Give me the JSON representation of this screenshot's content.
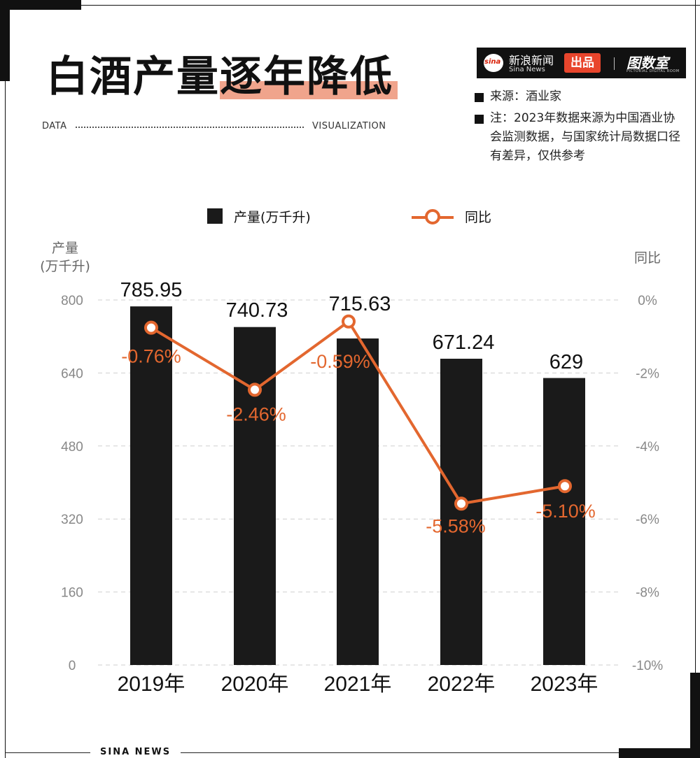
{
  "header": {
    "title_part1": "白酒产量",
    "title_part2": "逐年降低",
    "data_label": "DATA",
    "visualization_label": "VISUALIZATION"
  },
  "brand": {
    "logo_text": "sina",
    "name": "新浪新闻",
    "sub": "Sina News",
    "badge": "出品",
    "lab": "图数室",
    "lab_sub": "PICTORIAL DIGITAL ROOM"
  },
  "notes": {
    "source": "来源：酒业家",
    "note": "注：2023年数据来源为中国酒业协会监测数据，与国家统计局数据口径有差异，仅供参考"
  },
  "legend": {
    "bar_label": "产量(万千升)",
    "line_label": "同比"
  },
  "axes": {
    "left_title_1": "产量",
    "left_title_2": "(万千升)",
    "right_title": "同比"
  },
  "footer": {
    "text": "SINA NEWS"
  },
  "colors": {
    "bar": "#1a1a1a",
    "line": "#e3672f",
    "grid": "#cfcfcf",
    "axis_text": "#888888"
  },
  "chart_data": {
    "type": "bar",
    "categories": [
      "2019年",
      "2020年",
      "2021年",
      "2022年",
      "2023年"
    ],
    "series": [
      {
        "name": "产量(万千升)",
        "type": "bar",
        "axis": "left",
        "values": [
          785.95,
          740.73,
          715.63,
          671.24,
          629
        ],
        "labels": [
          "785.95",
          "740.73",
          "715.63",
          "671.24",
          "629"
        ]
      },
      {
        "name": "同比",
        "type": "line",
        "axis": "right",
        "values": [
          -0.76,
          -2.46,
          -0.59,
          -5.58,
          -5.1
        ],
        "labels": [
          "-0.76%",
          "-2.46%",
          "-0.59%",
          "-5.58%",
          "-5.10%"
        ]
      }
    ],
    "y_left": {
      "min": 0,
      "max": 800,
      "ticks": [
        0,
        160,
        320,
        480,
        640,
        800
      ],
      "tick_labels": [
        "0",
        "160",
        "320",
        "480",
        "640",
        "800"
      ]
    },
    "y_right": {
      "min": -10,
      "max": 0,
      "ticks": [
        0,
        -2,
        -4,
        -6,
        -8,
        -10
      ],
      "tick_labels": [
        "0%",
        "-2%",
        "-4%",
        "-6%",
        "-8%",
        "-10%"
      ]
    },
    "grid": true,
    "title": "白酒产量逐年降低"
  }
}
